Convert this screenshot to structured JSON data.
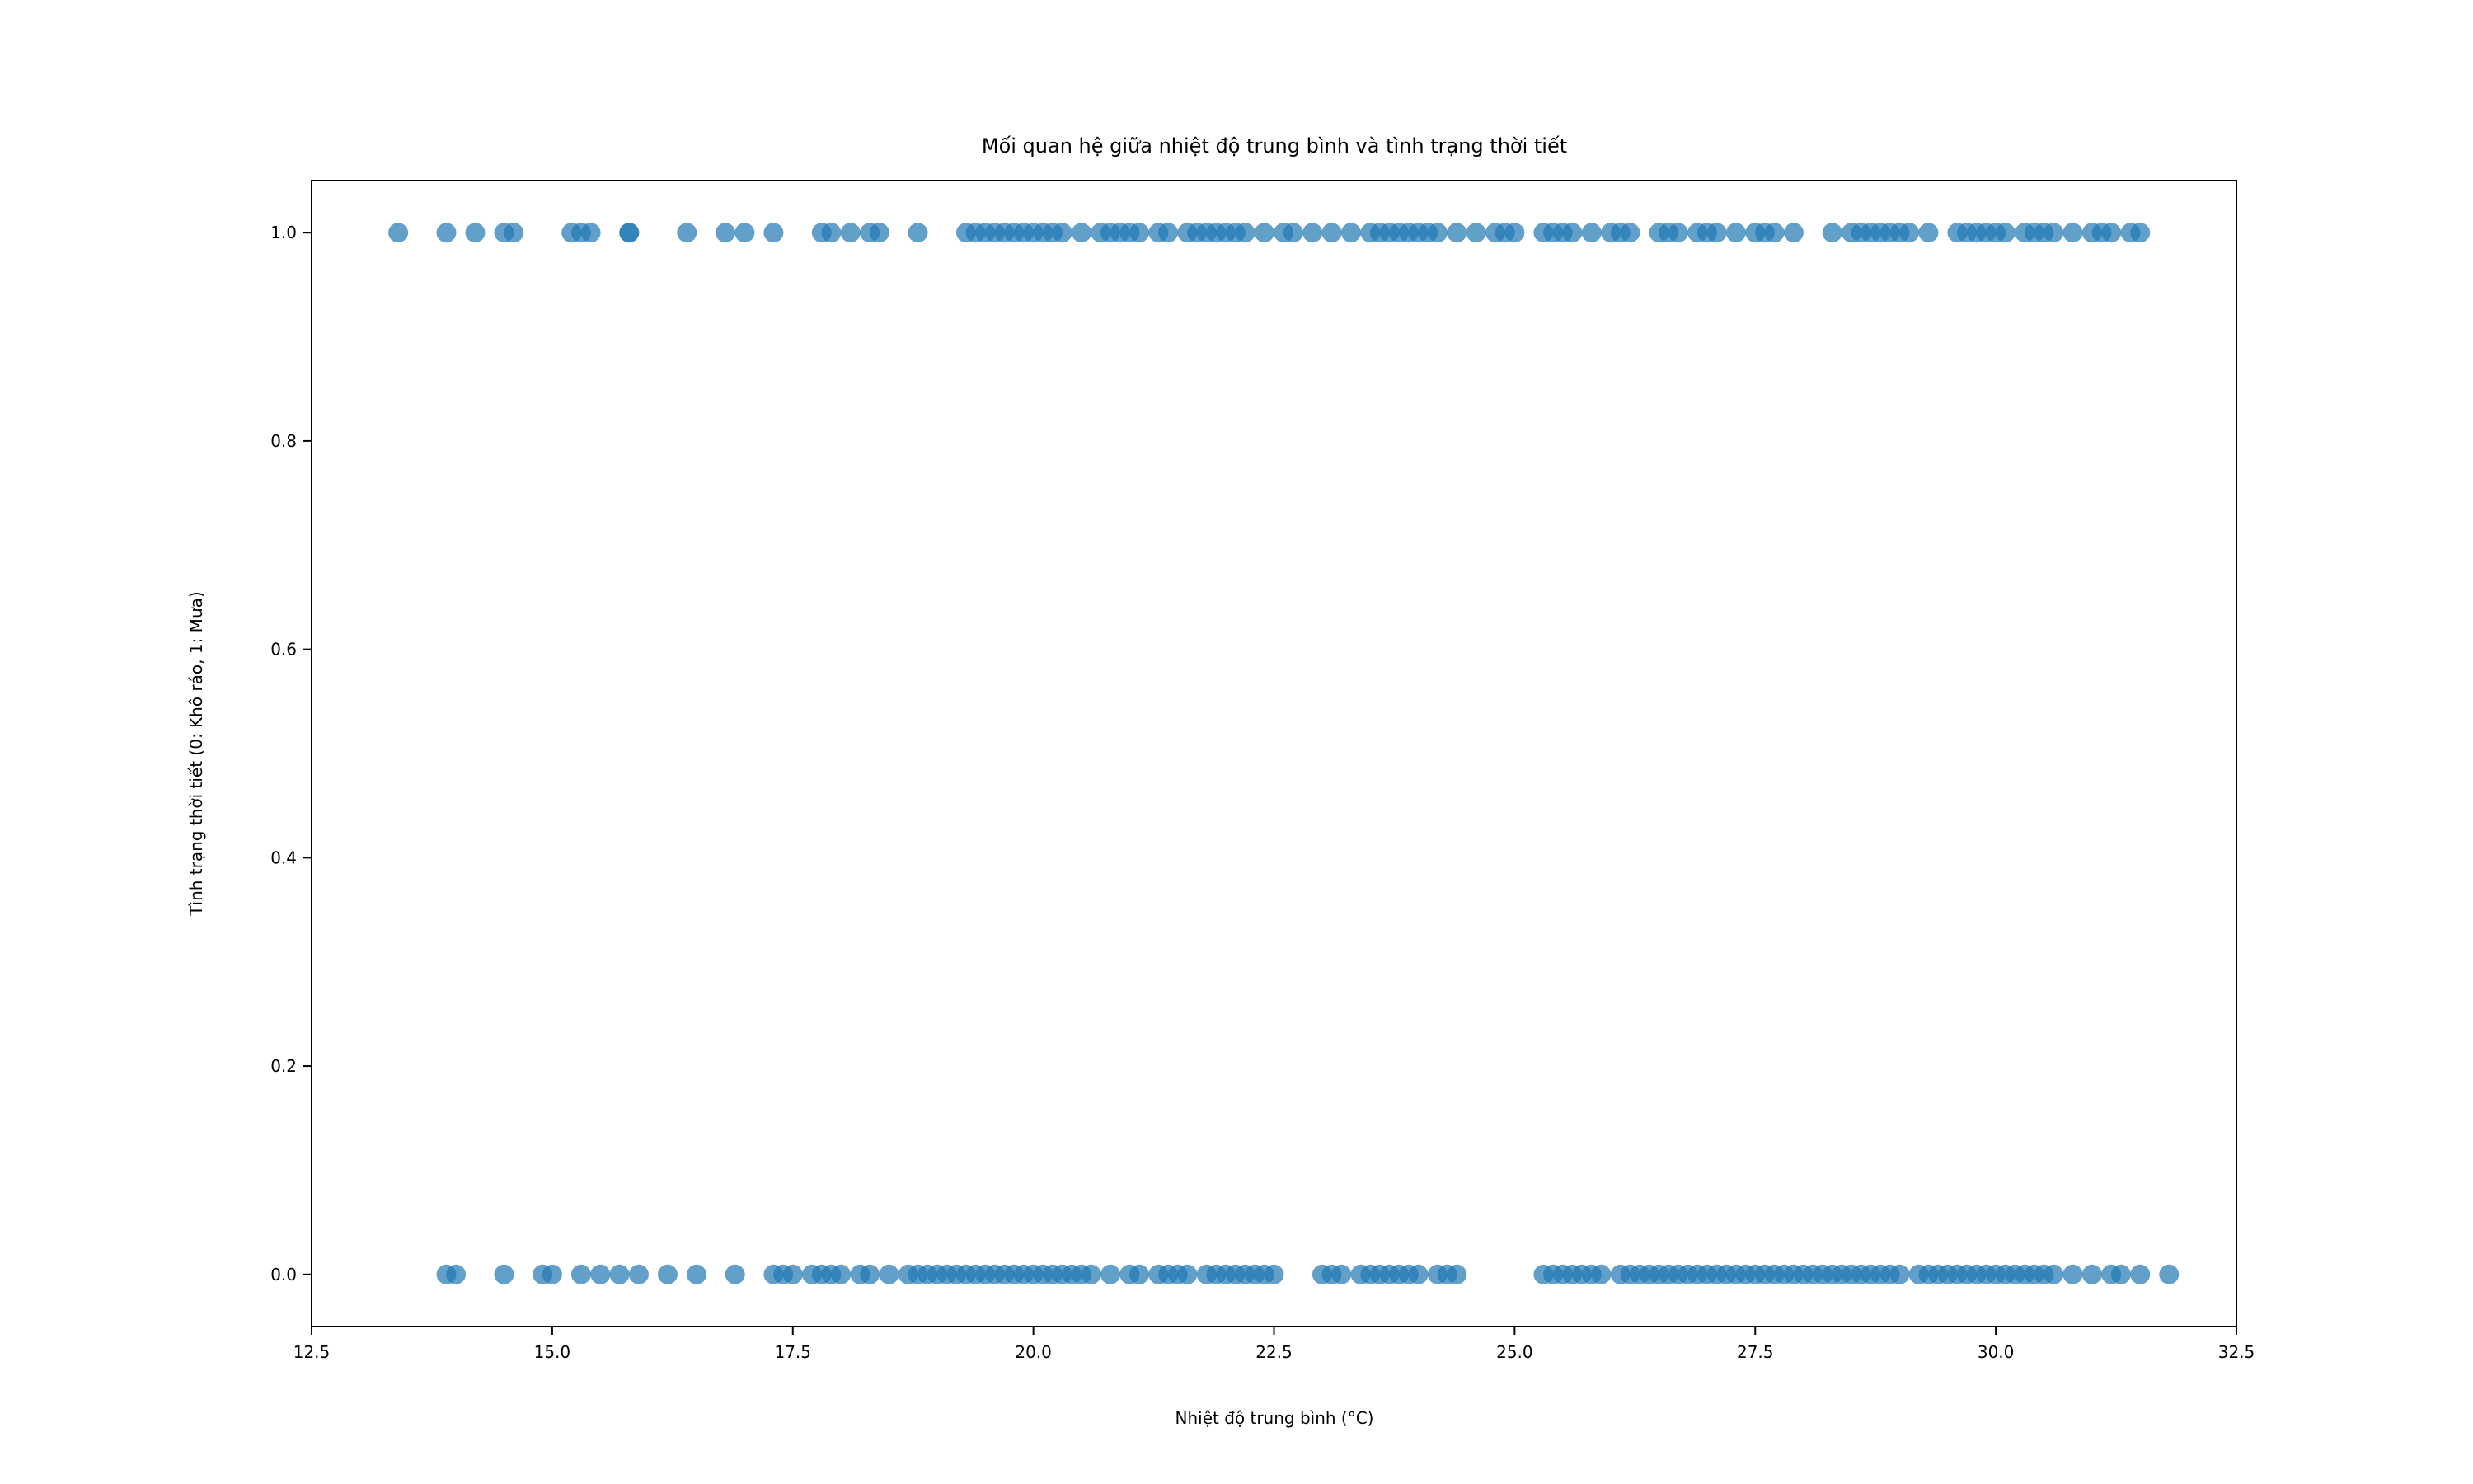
{
  "chart_data": {
    "type": "scatter",
    "title": "Mối quan hệ giữa nhiệt độ trung bình và tình trạng thời tiết",
    "xlabel": "Nhiệt độ trung bình (°C)",
    "ylabel": "Tình trạng thời tiết (0: Khô ráo, 1: Mưa)",
    "xlim": [
      12.5,
      32.5
    ],
    "ylim": [
      -0.05,
      1.05
    ],
    "xticks": [
      12.5,
      15.0,
      17.5,
      20.0,
      22.5,
      25.0,
      27.5,
      30.0,
      32.5
    ],
    "xtick_labels": [
      "12.5",
      "15.0",
      "17.5",
      "20.0",
      "22.5",
      "25.0",
      "27.5",
      "30.0",
      "32.5"
    ],
    "yticks": [
      0.0,
      0.2,
      0.4,
      0.6,
      0.8,
      1.0
    ],
    "ytick_labels": [
      "0.0",
      "0.2",
      "0.4",
      "0.6",
      "0.8",
      "1.0"
    ],
    "grid": false,
    "marker_color": "#1f77b4",
    "marker_alpha": 0.7,
    "series": [
      {
        "values_y": 1,
        "x": [
          13.4,
          13.9,
          14.2,
          14.5,
          14.6,
          15.2,
          15.3,
          15.4,
          15.8,
          15.8,
          16.4,
          16.8,
          17.0,
          17.3,
          17.8,
          17.9,
          18.1,
          18.3,
          18.4,
          18.8,
          19.3,
          19.4,
          19.5,
          19.6,
          19.7,
          19.8,
          19.9,
          20.0,
          20.1,
          20.2,
          20.3,
          20.5,
          20.7,
          20.8,
          20.9,
          21.0,
          21.1,
          21.3,
          21.4,
          21.6,
          21.7,
          21.8,
          21.9,
          22.0,
          22.1,
          22.2,
          22.4,
          22.6,
          22.7,
          22.9,
          23.1,
          23.3,
          23.5,
          23.6,
          23.7,
          23.8,
          23.9,
          24.0,
          24.1,
          24.2,
          24.4,
          24.6,
          24.8,
          24.9,
          25.0,
          25.3,
          25.4,
          25.5,
          25.6,
          25.8,
          26.0,
          26.1,
          26.2,
          26.5,
          26.6,
          26.7,
          26.9,
          27.0,
          27.1,
          27.3,
          27.5,
          27.6,
          27.7,
          27.9,
          28.3,
          28.5,
          28.6,
          28.7,
          28.8,
          28.9,
          29.0,
          29.1,
          29.3,
          29.6,
          29.7,
          29.8,
          29.9,
          30.0,
          30.1,
          30.3,
          30.4,
          30.5,
          30.6,
          30.8,
          31.0,
          31.1,
          31.2,
          31.4,
          31.5
        ]
      },
      {
        "values_y": 0,
        "x": [
          13.9,
          14.0,
          14.5,
          14.9,
          15.0,
          15.3,
          15.5,
          15.7,
          15.9,
          16.2,
          16.5,
          16.9,
          17.3,
          17.4,
          17.5,
          17.7,
          17.8,
          17.9,
          18.0,
          18.2,
          18.3,
          18.5,
          18.7,
          18.8,
          18.9,
          19.0,
          19.1,
          19.2,
          19.3,
          19.4,
          19.5,
          19.6,
          19.7,
          19.8,
          19.9,
          20.0,
          20.1,
          20.2,
          20.3,
          20.4,
          20.5,
          20.6,
          20.8,
          21.0,
          21.1,
          21.3,
          21.4,
          21.5,
          21.6,
          21.8,
          21.9,
          22.0,
          22.1,
          22.2,
          22.3,
          22.4,
          22.5,
          23.0,
          23.1,
          23.2,
          23.4,
          23.5,
          23.6,
          23.7,
          23.8,
          23.9,
          24.0,
          24.2,
          24.3,
          24.4,
          25.3,
          25.4,
          25.5,
          25.6,
          25.7,
          25.8,
          25.9,
          26.1,
          26.2,
          26.3,
          26.4,
          26.5,
          26.6,
          26.7,
          26.8,
          26.9,
          27.0,
          27.1,
          27.2,
          27.3,
          27.4,
          27.5,
          27.6,
          27.7,
          27.8,
          27.9,
          28.0,
          28.1,
          28.2,
          28.3,
          28.4,
          28.5,
          28.6,
          28.7,
          28.8,
          28.9,
          29.0,
          29.2,
          29.3,
          29.4,
          29.5,
          29.6,
          29.7,
          29.8,
          29.9,
          30.0,
          30.1,
          30.2,
          30.3,
          30.4,
          30.5,
          30.6,
          30.8,
          31.0,
          31.2,
          31.3,
          31.5,
          31.8
        ]
      }
    ]
  }
}
